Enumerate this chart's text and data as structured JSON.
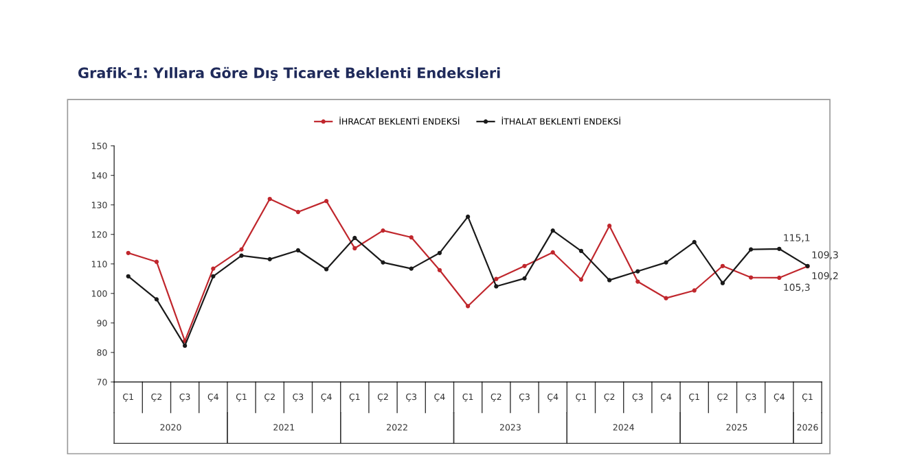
{
  "chart_data": {
    "type": "line",
    "title": "Grafik-1: Yıllara Göre Dış Ticaret Beklenti Endeksleri",
    "categories": [
      "Ç1",
      "Ç2",
      "Ç3",
      "Ç4",
      "Ç1",
      "Ç2",
      "Ç3",
      "Ç4",
      "Ç1",
      "Ç2",
      "Ç3",
      "Ç4",
      "Ç1",
      "Ç2",
      "Ç3",
      "Ç4",
      "Ç1",
      "Ç2",
      "Ç3",
      "Ç4",
      "Ç1",
      "Ç2",
      "Ç3",
      "Ç4",
      "Ç1"
    ],
    "annotations": [
      "2020",
      "2021",
      "2022",
      "2023",
      "2024",
      "2025",
      "2026"
    ],
    "series": [
      {
        "name": "İHRACAT BEKLENTİ ENDEKSİ",
        "color": "#c0272d",
        "values": [
          113.7,
          110.7,
          83.9,
          108.4,
          114.9,
          132.0,
          127.6,
          131.3,
          115.3,
          121.3,
          119.0,
          107.9,
          95.7,
          104.9,
          109.3,
          113.9,
          104.7,
          122.9,
          104.0,
          98.4,
          101.0,
          109.3,
          105.4,
          105.3,
          109.2
        ],
        "value_labels": [
          null,
          null,
          null,
          null,
          null,
          null,
          null,
          null,
          null,
          null,
          null,
          null,
          null,
          null,
          null,
          null,
          null,
          null,
          null,
          null,
          null,
          null,
          null,
          "105,3",
          "109,2"
        ]
      },
      {
        "name": "İTHALAT BEKLENTİ ENDEKSİ",
        "color": "#1a1a1a",
        "values": [
          105.8,
          98.0,
          82.3,
          105.8,
          112.8,
          111.6,
          114.6,
          108.2,
          118.8,
          110.5,
          108.4,
          113.7,
          126.0,
          102.4,
          105.1,
          121.3,
          114.4,
          104.5,
          107.5,
          110.5,
          117.4,
          103.5,
          114.9,
          115.1,
          109.3
        ],
        "value_labels": [
          null,
          null,
          null,
          null,
          null,
          null,
          null,
          null,
          null,
          null,
          null,
          null,
          null,
          null,
          null,
          null,
          null,
          null,
          null,
          null,
          null,
          null,
          null,
          "115,1",
          "109,3"
        ]
      }
    ],
    "ylim": [
      70,
      150
    ],
    "yticks": [
      70,
      80,
      90,
      100,
      110,
      120,
      130,
      140,
      150
    ],
    "grid": false,
    "legend": "top",
    "marker": "circle",
    "line_style": "solid"
  }
}
